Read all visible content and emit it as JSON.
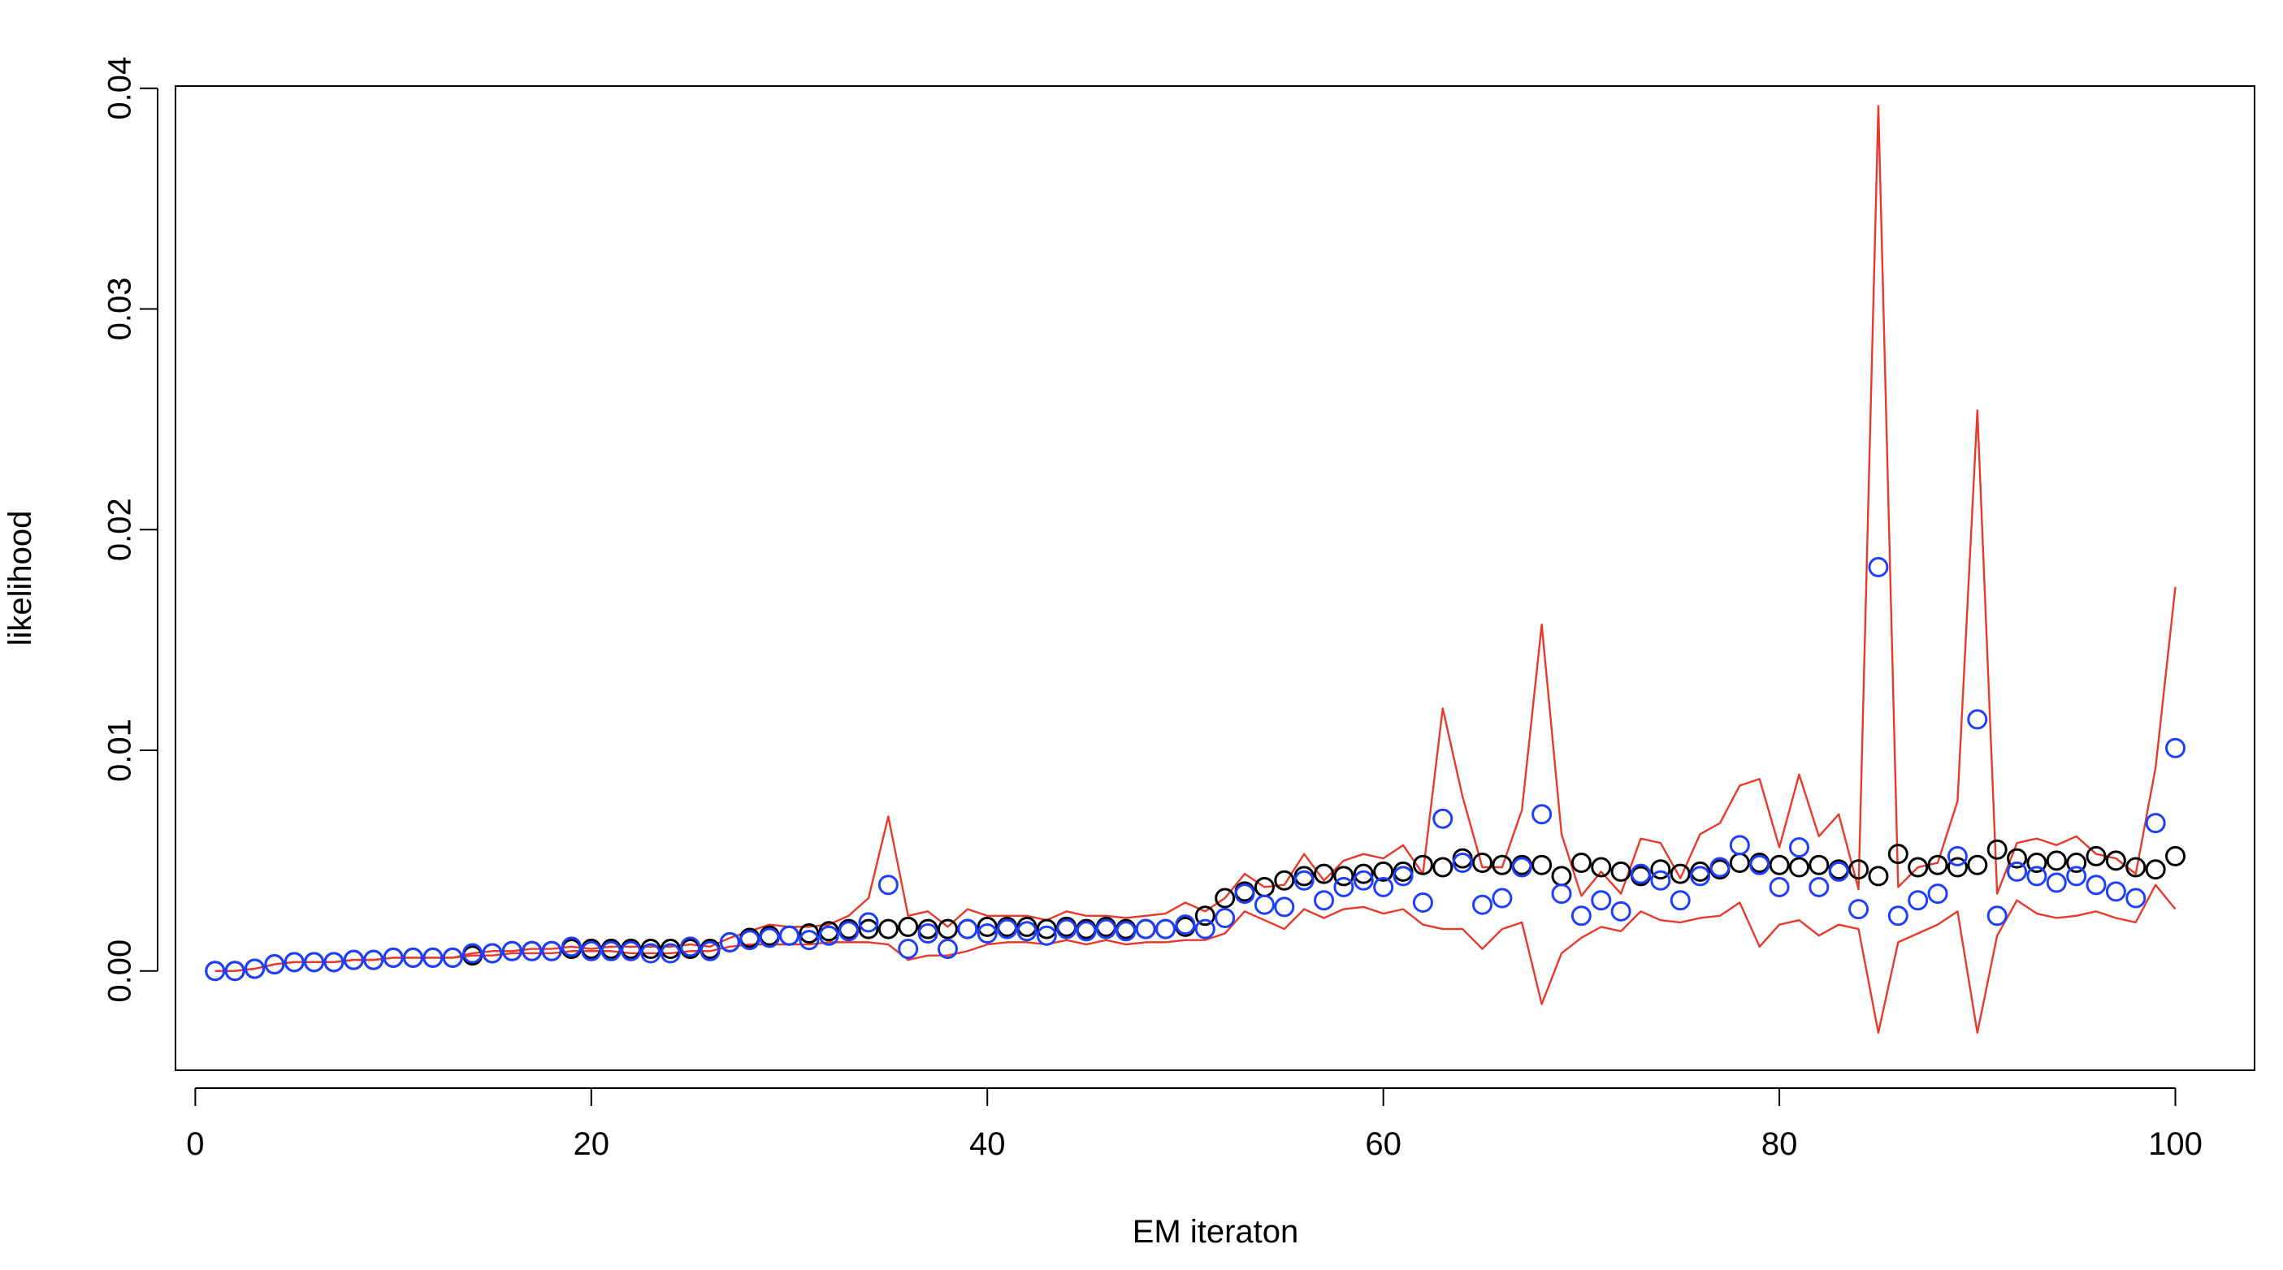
{
  "chart_data": {
    "type": "scatter",
    "xlabel": "EM iteraton",
    "ylabel": "likelihood",
    "xlim": [
      -1,
      104
    ],
    "ylim": [
      -0.0045,
      0.0401
    ],
    "xticks": [
      0,
      20,
      40,
      60,
      80,
      100
    ],
    "xtick_labels": [
      "0",
      "20",
      "40",
      "60",
      "80",
      "100"
    ],
    "yticks": [
      0.0,
      0.01,
      0.02,
      0.03,
      0.04
    ],
    "ytick_labels": [
      "0.00",
      "0.01",
      "0.02",
      "0.03",
      "0.04"
    ],
    "grid": false,
    "colors": {
      "black_series": "#000000",
      "blue_series": "#1f3fff",
      "band": "#e8392a"
    },
    "x": [
      1,
      2,
      3,
      4,
      5,
      6,
      7,
      8,
      9,
      10,
      11,
      12,
      13,
      14,
      15,
      16,
      17,
      18,
      19,
      20,
      21,
      22,
      23,
      24,
      25,
      26,
      27,
      28,
      29,
      30,
      31,
      32,
      33,
      34,
      35,
      36,
      37,
      38,
      39,
      40,
      41,
      42,
      43,
      44,
      45,
      46,
      47,
      48,
      49,
      50,
      51,
      52,
      53,
      54,
      55,
      56,
      57,
      58,
      59,
      60,
      61,
      62,
      63,
      64,
      65,
      66,
      67,
      68,
      69,
      70,
      71,
      72,
      73,
      74,
      75,
      76,
      77,
      78,
      79,
      80,
      81,
      82,
      83,
      84,
      85,
      86,
      87,
      88,
      89,
      90,
      91,
      92,
      93,
      94,
      95,
      96,
      97,
      98,
      99,
      100
    ],
    "series": [
      {
        "marker": "circle",
        "color": "#000000",
        "values": [
          0.0,
          0.0,
          0.0001,
          0.0003,
          0.0004,
          0.0004,
          0.0004,
          0.0005,
          0.0005,
          0.0006,
          0.0006,
          0.0006,
          0.0006,
          0.0007,
          0.0008,
          0.0009,
          0.0009,
          0.0009,
          0.001,
          0.001,
          0.001,
          0.001,
          0.001,
          0.001,
          0.001,
          0.001,
          0.0013,
          0.0015,
          0.0016,
          0.0016,
          0.0017,
          0.0018,
          0.0019,
          0.0019,
          0.0019,
          0.002,
          0.0019,
          0.0019,
          0.0019,
          0.002,
          0.002,
          0.002,
          0.0019,
          0.002,
          0.0019,
          0.002,
          0.0019,
          0.0019,
          0.0019,
          0.002,
          0.0025,
          0.0033,
          0.0036,
          0.0038,
          0.0041,
          0.0043,
          0.0044,
          0.0043,
          0.0044,
          0.0045,
          0.0045,
          0.0048,
          0.0047,
          0.0051,
          0.0049,
          0.0048,
          0.0048,
          0.0048,
          0.0043,
          0.0049,
          0.0047,
          0.0045,
          0.0043,
          0.0046,
          0.0044,
          0.0045,
          0.0046,
          0.0049,
          0.0049,
          0.0048,
          0.0047,
          0.0048,
          0.0046,
          0.0046,
          0.0043,
          0.0053,
          0.0047,
          0.0048,
          0.0047,
          0.0048,
          0.0055,
          0.0051,
          0.0049,
          0.005,
          0.0049,
          0.0052,
          0.005,
          0.0047,
          0.0046,
          0.0052
        ]
      },
      {
        "marker": "circle",
        "color": "#1f3fff",
        "values": [
          0.0,
          0.0,
          0.0001,
          0.0003,
          0.0004,
          0.0004,
          0.0004,
          0.0005,
          0.0005,
          0.0006,
          0.0006,
          0.0006,
          0.0006,
          0.0008,
          0.0008,
          0.0009,
          0.0009,
          0.0009,
          0.0011,
          0.0009,
          0.0009,
          0.0009,
          0.0008,
          0.0008,
          0.0011,
          0.0009,
          0.0013,
          0.0014,
          0.0015,
          0.0016,
          0.0014,
          0.0016,
          0.0018,
          0.0022,
          0.0039,
          0.001,
          0.0017,
          0.001,
          0.0019,
          0.0017,
          0.0019,
          0.0018,
          0.0016,
          0.0019,
          0.0018,
          0.0019,
          0.0018,
          0.0019,
          0.0019,
          0.0021,
          0.0019,
          0.0024,
          0.0035,
          0.003,
          0.0029,
          0.0041,
          0.0032,
          0.0038,
          0.0041,
          0.0038,
          0.0043,
          0.0031,
          0.0069,
          0.0049,
          0.003,
          0.0033,
          0.0047,
          0.0071,
          0.0035,
          0.0025,
          0.0032,
          0.0027,
          0.0044,
          0.0041,
          0.0032,
          0.0043,
          0.0047,
          0.0057,
          0.0048,
          0.0038,
          0.0056,
          0.0038,
          0.0045,
          0.0028,
          0.0183,
          0.0025,
          0.0032,
          0.0035,
          0.0052,
          0.0114,
          0.0025,
          0.0045,
          0.0043,
          0.004,
          0.0043,
          0.0039,
          0.0036,
          0.0033,
          0.0067,
          0.0101
        ]
      }
    ],
    "band": {
      "type": "line",
      "color": "#e8392a",
      "upper": [
        0.0,
        0.0,
        0.0001,
        0.0003,
        0.0004,
        0.0004,
        0.0004,
        0.0005,
        0.0005,
        0.0006,
        0.0006,
        0.0006,
        0.0006,
        0.0008,
        0.0009,
        0.0009,
        0.001,
        0.001,
        0.0011,
        0.001,
        0.0011,
        0.0011,
        0.0011,
        0.0011,
        0.0012,
        0.0011,
        0.0015,
        0.0018,
        0.0021,
        0.002,
        0.002,
        0.0021,
        0.0025,
        0.0033,
        0.007,
        0.0025,
        0.0027,
        0.002,
        0.0028,
        0.0025,
        0.0025,
        0.0025,
        0.0023,
        0.0027,
        0.0025,
        0.0025,
        0.0024,
        0.0025,
        0.0026,
        0.0031,
        0.0027,
        0.0033,
        0.0044,
        0.0038,
        0.0039,
        0.0053,
        0.0041,
        0.005,
        0.0053,
        0.0051,
        0.0057,
        0.0044,
        0.0119,
        0.0079,
        0.0047,
        0.0047,
        0.0073,
        0.0157,
        0.0062,
        0.0034,
        0.0045,
        0.0035,
        0.006,
        0.0058,
        0.0042,
        0.0062,
        0.0067,
        0.0084,
        0.0087,
        0.0056,
        0.0089,
        0.0061,
        0.0071,
        0.0037,
        0.0392,
        0.0038,
        0.0047,
        0.0049,
        0.0077,
        0.0254,
        0.0035,
        0.0058,
        0.006,
        0.0057,
        0.0061,
        0.0053,
        0.0051,
        0.0044,
        0.0092,
        0.0174
      ],
      "lower": [
        0.0,
        0.0,
        0.0001,
        0.0003,
        0.0004,
        0.0004,
        0.0004,
        0.0005,
        0.0005,
        0.0006,
        0.0006,
        0.0006,
        0.0006,
        0.0007,
        0.0007,
        0.0008,
        0.0008,
        0.0008,
        0.0009,
        0.0009,
        0.0009,
        0.0008,
        0.0008,
        0.0008,
        0.0009,
        0.0009,
        0.0011,
        0.0012,
        0.0012,
        0.0012,
        0.0012,
        0.0013,
        0.0013,
        0.0013,
        0.0012,
        0.0005,
        0.0007,
        0.0007,
        0.0009,
        0.0012,
        0.0013,
        0.0013,
        0.0012,
        0.0014,
        0.0012,
        0.0014,
        0.0012,
        0.0013,
        0.0013,
        0.0014,
        0.0014,
        0.0017,
        0.0027,
        0.0023,
        0.0019,
        0.0028,
        0.0024,
        0.0028,
        0.0029,
        0.0026,
        0.0028,
        0.0021,
        0.0019,
        0.0019,
        0.001,
        0.0019,
        0.0022,
        -0.0015,
        0.0008,
        0.0015,
        0.002,
        0.0018,
        0.0027,
        0.0023,
        0.0022,
        0.0024,
        0.0025,
        0.0031,
        0.0011,
        0.0021,
        0.0023,
        0.0016,
        0.0021,
        0.0019,
        -0.0028,
        0.0013,
        0.0017,
        0.0021,
        0.0027,
        -0.0028,
        0.0016,
        0.0032,
        0.0026,
        0.0024,
        0.0025,
        0.0027,
        0.0024,
        0.0022,
        0.0039,
        0.0028
      ]
    }
  }
}
